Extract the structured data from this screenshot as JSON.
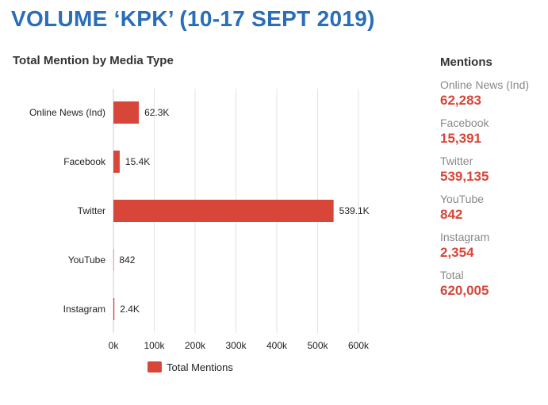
{
  "page_title": "VOLUME ‘KPK’ (10-17 SEPT 2019)",
  "colors": {
    "title": "#2a6db8",
    "bar": "#d8463a",
    "value": "#d8463a"
  },
  "chart_data": {
    "type": "bar",
    "orientation": "horizontal",
    "title": "Total Mention by Media Type",
    "categories": [
      "Online News (Ind)",
      "Facebook",
      "Twitter",
      "YouTube",
      "Instagram"
    ],
    "series": [
      {
        "name": "Total Mentions",
        "values": [
          62283,
          15391,
          539135,
          842,
          2354
        ],
        "data_labels": [
          "62.3K",
          "15.4K",
          "539.1K",
          "842",
          "2.4K"
        ]
      }
    ],
    "xlim": [
      0,
      600000
    ],
    "x_ticks": [
      0,
      100000,
      200000,
      300000,
      400000,
      500000,
      600000
    ],
    "x_tick_labels": [
      "0k",
      "100k",
      "200k",
      "300k",
      "400k",
      "500k",
      "600k"
    ],
    "grid": true,
    "legend": "bottom"
  },
  "side_panel": {
    "heading": "Mentions",
    "items": [
      {
        "label": "Online News (Ind)",
        "value": "62,283"
      },
      {
        "label": "Facebook",
        "value": "15,391"
      },
      {
        "label": "Twitter",
        "value": "539,135"
      },
      {
        "label": "YouTube",
        "value": "842"
      },
      {
        "label": "Instagram",
        "value": "2,354"
      },
      {
        "label": "Total",
        "value": "620,005"
      }
    ]
  }
}
